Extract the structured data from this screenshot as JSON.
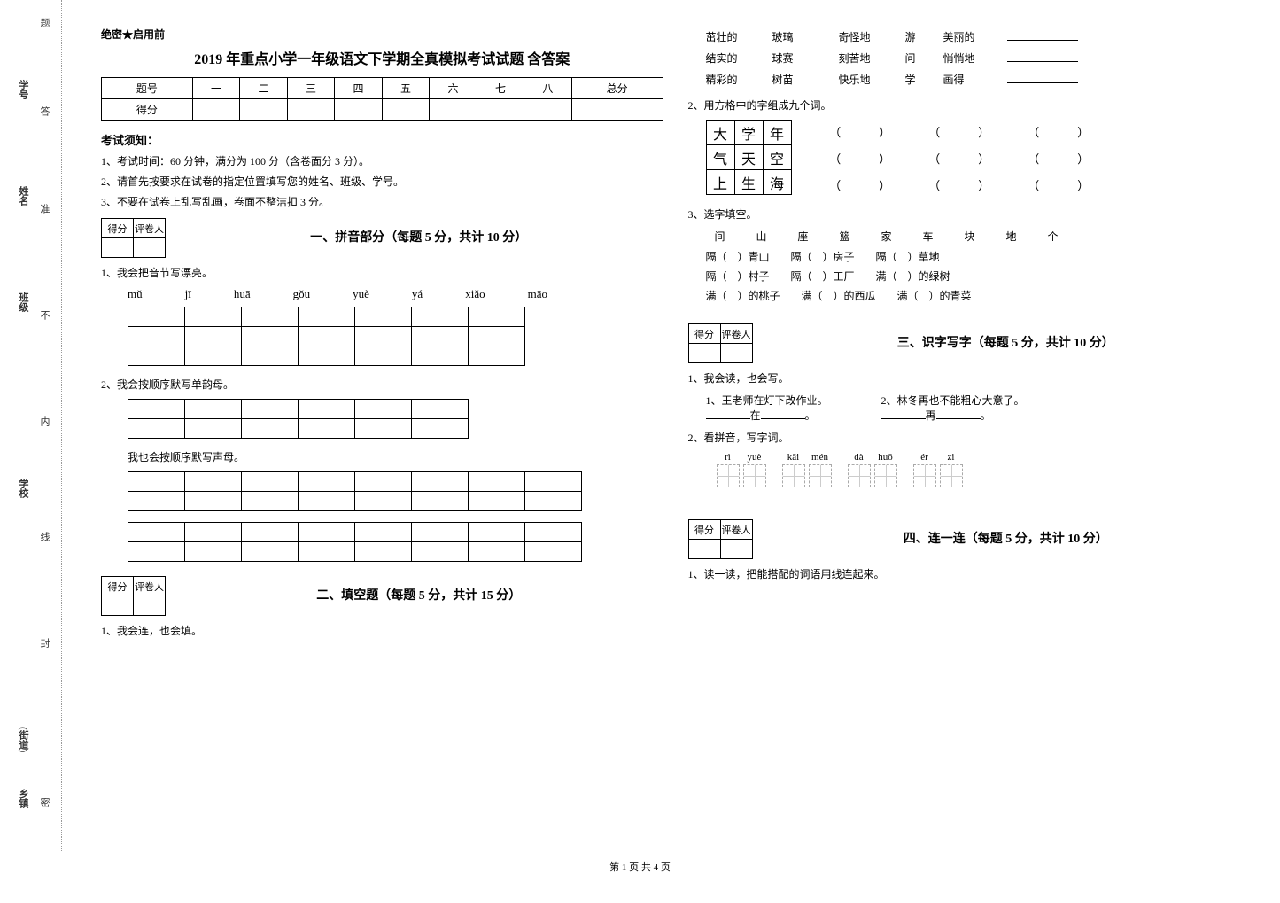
{
  "spine": {
    "items": [
      "题",
      "学号",
      "答",
      "姓名",
      "准",
      "班级",
      "不",
      "内",
      "学校",
      "线",
      "封",
      "(街道)",
      "乡镇",
      "密"
    ]
  },
  "secret": "绝密★启用前",
  "title": "2019 年重点小学一年级语文下学期全真模拟考试试题 含答案",
  "scorebar": {
    "head": [
      "题号",
      "一",
      "二",
      "三",
      "四",
      "五",
      "六",
      "七",
      "八",
      "总分"
    ],
    "row": "得分"
  },
  "instructions": {
    "head": "考试须知：",
    "list": [
      "1、考试时间：60 分钟，满分为 100 分（含卷面分 3 分）。",
      "2、请首先按要求在试卷的指定位置填写您的姓名、班级、学号。",
      "3、不要在试卷上乱写乱画，卷面不整洁扣 3 分。"
    ]
  },
  "scorebox_labels": [
    "得分",
    "评卷人"
  ],
  "sec1": {
    "title": "一、拼音部分（每题 5 分，共计 10 分）",
    "q1": "1、我会把音节写漂亮。",
    "pinyin": [
      "mǔ",
      "jī",
      "huā",
      "gǒu",
      "yuè",
      "yá",
      "xiǎo",
      "māo"
    ],
    "q2": "2、我会按顺序默写单韵母。",
    "q2b": "我也会按顺序默写声母。"
  },
  "sec2": {
    "title": "二、填空题（每题 5 分，共计 15 分）",
    "q1": "1、我会连，也会填。",
    "words_col1": [
      "茁壮的",
      "结实的",
      "精彩的"
    ],
    "words_col2": [
      "玻璃",
      "球赛",
      "树苗"
    ],
    "words_col3": [
      "奇怪地",
      "刻苦地",
      "快乐地"
    ],
    "words_col4": [
      "游",
      "问",
      "学"
    ],
    "words_col5": [
      "美丽的",
      "悄悄地",
      "画得"
    ],
    "q2": "2、用方格中的字组成九个词。",
    "grid": [
      [
        "大",
        "学",
        "年"
      ],
      [
        "气",
        "天",
        "空"
      ],
      [
        "上",
        "生",
        "海"
      ]
    ],
    "q3": "3、选字填空。",
    "q3_words": [
      "间",
      "山",
      "座",
      "篮",
      "家",
      "车",
      "块",
      "地",
      "个"
    ],
    "q3_lines": [
      {
        "a": "隔（",
        "b": "）青山",
        "c": "隔（",
        "d": "）房子",
        "e": "隔（",
        "f": "）草地"
      },
      {
        "a": "隔（",
        "b": "）村子",
        "c": "隔（",
        "d": "）工厂",
        "e": "满（",
        "f": "）的绿树"
      },
      {
        "a": "满（",
        "b": "）的桃子",
        "c": "满（",
        "d": "）的西瓜",
        "e": "满（",
        "f": "）的青菜"
      }
    ]
  },
  "sec3": {
    "title": "三、识字写字（每题 5 分，共计 10 分）",
    "q1": "1、我会读，也会写。",
    "q1a": "1、王老师在灯下改作业。",
    "q1a_blank_prefix": "在",
    "q1b": "2、林冬再也不能粗心大意了。",
    "q1b_blank_prefix": "再",
    "q2": "2、看拼音，写字词。",
    "tg_py": [
      "rì",
      "yuè",
      "kāi",
      "mén",
      "dà",
      "huǒ",
      "ér",
      "zi"
    ],
    "tg_groups": [
      2,
      2,
      2,
      2
    ]
  },
  "sec4": {
    "title": "四、连一连（每题 5 分，共计 10 分）",
    "q1": "1、读一读，把能搭配的词语用线连起来。"
  },
  "footer": "第 1 页 共 4 页"
}
